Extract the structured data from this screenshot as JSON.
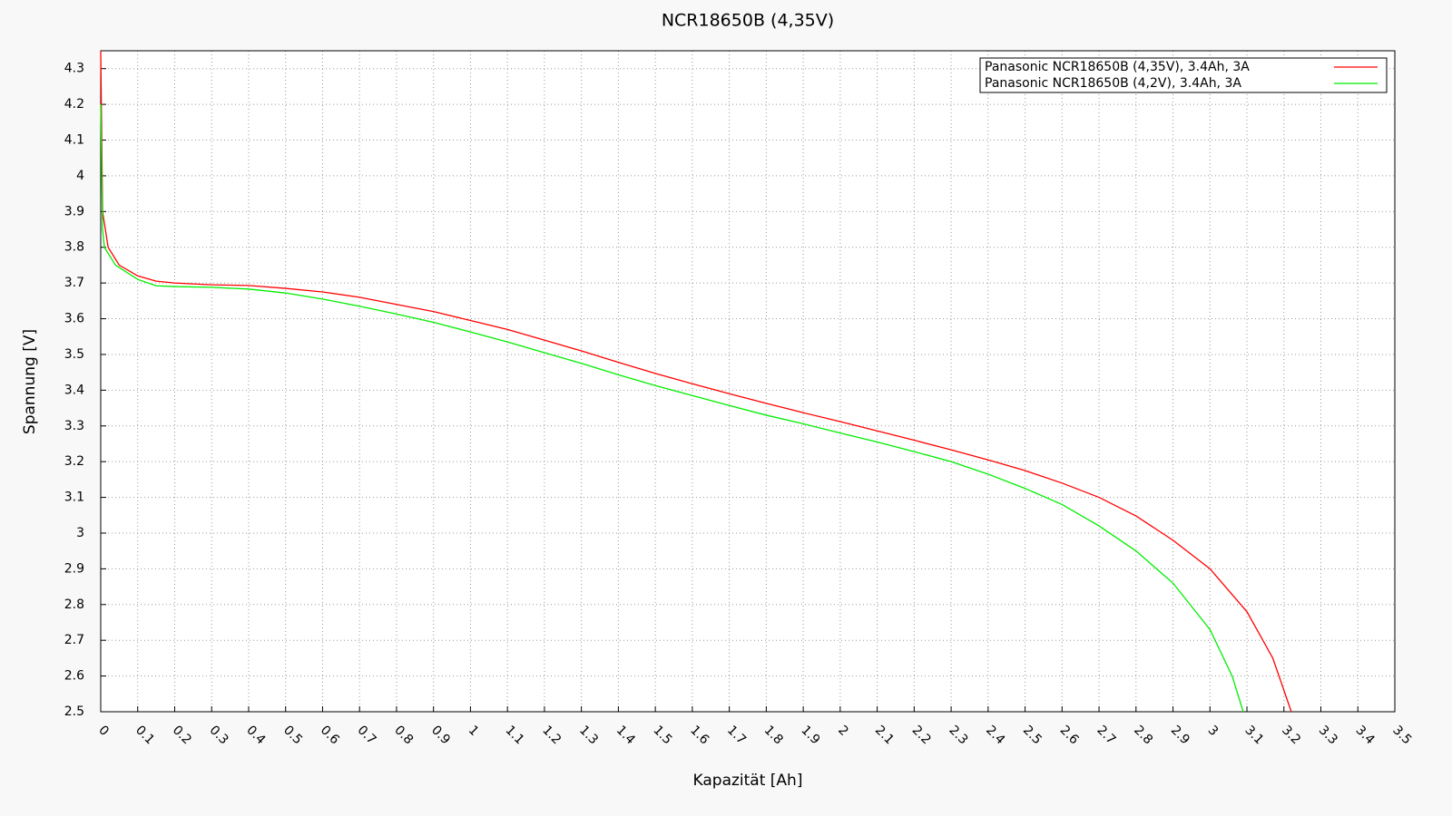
{
  "chart_data": {
    "type": "line",
    "title": "NCR18650B (4,35V)",
    "x_label": "Kapazität [Ah]",
    "y_label": "Spannung [V]",
    "xlim": [
      0,
      3.5
    ],
    "ylim": [
      2.5,
      4.35
    ],
    "xticks": [
      0,
      0.1,
      0.2,
      0.3,
      0.4,
      0.5,
      0.6,
      0.7,
      0.8,
      0.9,
      1,
      1.1,
      1.2,
      1.3,
      1.4,
      1.5,
      1.6,
      1.7,
      1.8,
      1.9,
      2,
      2.1,
      2.2,
      2.3,
      2.4,
      2.5,
      2.6,
      2.7,
      2.8,
      2.9,
      3,
      3.1,
      3.2,
      3.3,
      3.4,
      3.5
    ],
    "yticks": [
      2.5,
      2.6,
      2.7,
      2.8,
      2.9,
      3,
      3.1,
      3.2,
      3.3,
      3.4,
      3.5,
      3.6,
      3.7,
      3.8,
      3.9,
      4,
      4.1,
      4.2,
      4.3
    ],
    "grid": true,
    "legend": "top-right",
    "series": [
      {
        "name": "Panasonic NCR18650B (4,35V), 3.4Ah, 3A",
        "color": "#ff0000",
        "x": [
          0,
          0.005,
          0.02,
          0.05,
          0.1,
          0.15,
          0.2,
          0.3,
          0.4,
          0.5,
          0.6,
          0.7,
          0.8,
          0.9,
          1.0,
          1.1,
          1.2,
          1.3,
          1.4,
          1.5,
          1.6,
          1.7,
          1.8,
          1.9,
          2.0,
          2.1,
          2.2,
          2.3,
          2.4,
          2.5,
          2.6,
          2.7,
          2.8,
          2.9,
          3.0,
          3.1,
          3.17,
          3.22
        ],
        "values": [
          4.35,
          3.9,
          3.8,
          3.75,
          3.72,
          3.705,
          3.7,
          3.695,
          3.693,
          3.685,
          3.675,
          3.66,
          3.64,
          3.62,
          3.595,
          3.57,
          3.54,
          3.51,
          3.478,
          3.447,
          3.418,
          3.39,
          3.363,
          3.337,
          3.312,
          3.286,
          3.26,
          3.233,
          3.205,
          3.175,
          3.14,
          3.1,
          3.048,
          2.98,
          2.9,
          2.78,
          2.65,
          2.5
        ]
      },
      {
        "name": "Panasonic NCR18650B (4,2V), 3.4Ah, 3A",
        "color": "#00ee00",
        "x": [
          0,
          0.005,
          0.01,
          0.04,
          0.1,
          0.15,
          0.2,
          0.3,
          0.4,
          0.5,
          0.6,
          0.7,
          0.8,
          0.9,
          1.0,
          1.1,
          1.2,
          1.3,
          1.4,
          1.5,
          1.6,
          1.7,
          1.8,
          1.9,
          2.0,
          2.1,
          2.2,
          2.3,
          2.4,
          2.5,
          2.6,
          2.7,
          2.8,
          2.9,
          3.0,
          3.06,
          3.09
        ],
        "values": [
          4.2,
          3.85,
          3.8,
          3.75,
          3.71,
          3.692,
          3.69,
          3.688,
          3.683,
          3.672,
          3.655,
          3.635,
          3.613,
          3.59,
          3.563,
          3.535,
          3.505,
          3.475,
          3.443,
          3.413,
          3.385,
          3.357,
          3.33,
          3.306,
          3.28,
          3.255,
          3.228,
          3.2,
          3.165,
          3.125,
          3.08,
          3.02,
          2.95,
          2.86,
          2.73,
          2.6,
          2.5
        ]
      }
    ]
  }
}
